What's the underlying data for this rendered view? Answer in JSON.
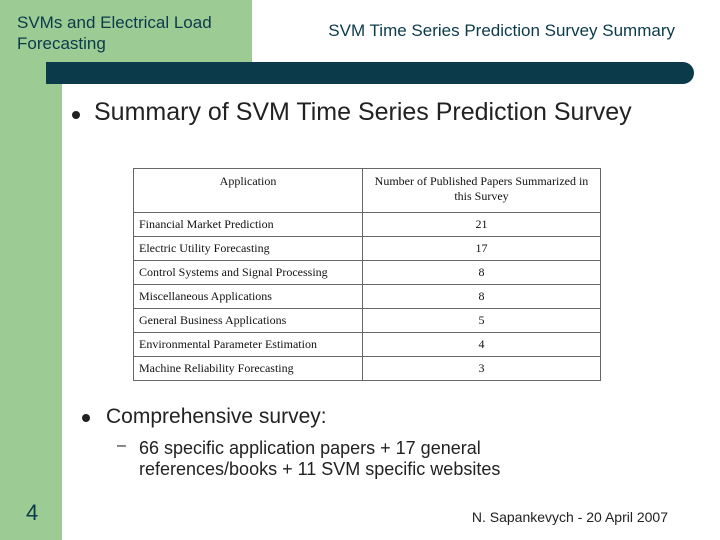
{
  "header": {
    "left_title": "SVMs and Electrical Load Forecasting",
    "right_title": "SVM Time Series Prediction Survey Summary"
  },
  "bullets": [
    {
      "text": "Summary of SVM Time Series Prediction Survey"
    },
    {
      "text": "Comprehensive survey:",
      "sub": "66 specific application papers + 17 general references/books + 11 SVM specific websites"
    }
  ],
  "sub_bullet_marker": "–",
  "table": {
    "headers": [
      "Application",
      "Number of Published Papers Summarized in this Survey"
    ],
    "rows": [
      [
        "Financial Market Prediction",
        "21"
      ],
      [
        "Electric Utility Forecasting",
        "17"
      ],
      [
        "Control Systems and Signal Processing",
        "8"
      ],
      [
        "Miscellaneous Applications",
        "8"
      ],
      [
        "General Business Applications",
        "5"
      ],
      [
        "Environmental Parameter Estimation",
        "4"
      ],
      [
        "Machine Reliability Forecasting",
        "3"
      ]
    ]
  },
  "footer": {
    "author_date": "N. Sapankevych - 20 April 2007",
    "page_number": "4"
  },
  "colors": {
    "accent_green": "#9ccb94",
    "dark_bar": "#0b3a4b"
  }
}
